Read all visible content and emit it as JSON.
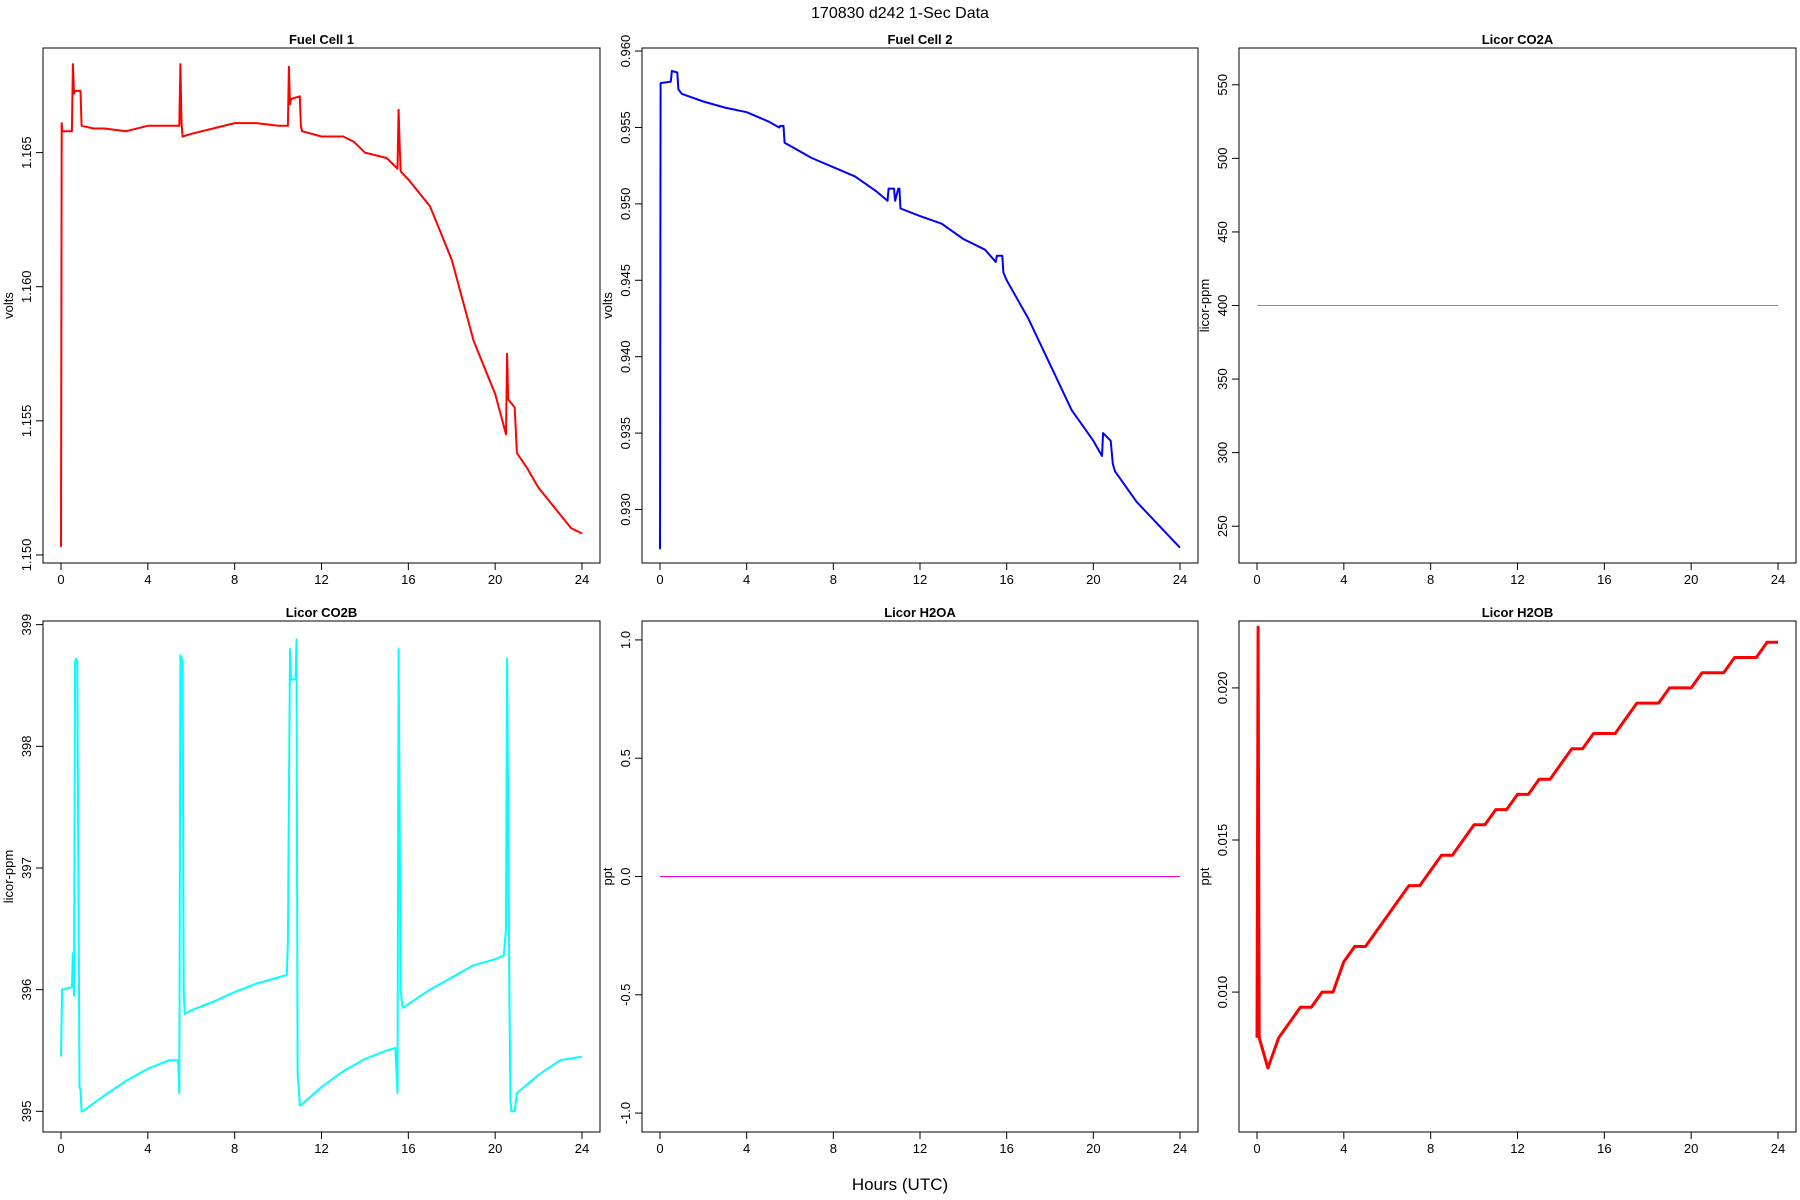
{
  "figure": {
    "title": "170830   d242   1-Sec Data",
    "xlabel": "Hours (UTC)"
  },
  "chart_data": [
    {
      "type": "line",
      "title": "Fuel Cell 1",
      "ylabel": "volts",
      "color": "#ff0000",
      "xlim": [
        0,
        24
      ],
      "ylim": [
        1.1497,
        1.1689
      ],
      "xticks": [
        0,
        4,
        8,
        12,
        16,
        20,
        24
      ],
      "xtick_labels": [
        "0",
        "4",
        "8",
        "12",
        "16",
        "20",
        "24"
      ],
      "yticks": [
        1.15,
        1.155,
        1.16,
        1.165
      ],
      "ytick_labels": [
        "1.150",
        "1.155",
        "1.160",
        "1.165"
      ],
      "series": [
        {
          "x": [
            0,
            0.03,
            0.06,
            0.5,
            0.55,
            0.6,
            0.65,
            0.9,
            0.95,
            1.5,
            2,
            3,
            4,
            5,
            5.45,
            5.5,
            5.55,
            5.6,
            6,
            7,
            8,
            9,
            10,
            10.45,
            10.5,
            10.55,
            10.6,
            11,
            11.05,
            11.1,
            12,
            13,
            13.5,
            14,
            15,
            15.5,
            15.55,
            15.6,
            15.65,
            16,
            17,
            18,
            19,
            19.5,
            20,
            20.5,
            20.55,
            20.6,
            20.7,
            20.9,
            21,
            21.5,
            22,
            23,
            23.5,
            24
          ],
          "y": [
            1.1503,
            1.1661,
            1.1658,
            1.1658,
            1.1683,
            1.1672,
            1.1673,
            1.1673,
            1.166,
            1.1659,
            1.1659,
            1.1658,
            1.166,
            1.166,
            1.166,
            1.1683,
            1.1661,
            1.1656,
            1.1657,
            1.1659,
            1.1661,
            1.1661,
            1.166,
            1.166,
            1.1682,
            1.1668,
            1.167,
            1.1671,
            1.166,
            1.1658,
            1.1656,
            1.1656,
            1.1654,
            1.165,
            1.1648,
            1.1644,
            1.1666,
            1.1652,
            1.1643,
            1.164,
            1.163,
            1.161,
            1.158,
            1.157,
            1.156,
            1.1545,
            1.1575,
            1.1558,
            1.1557,
            1.1555,
            1.1538,
            1.1532,
            1.1525,
            1.1515,
            1.151,
            1.1508
          ]
        }
      ]
    },
    {
      "type": "line",
      "title": "Fuel Cell 2",
      "ylabel": "volts",
      "color": "#0000ff",
      "xlim": [
        0,
        24
      ],
      "ylim": [
        0.9265,
        0.9602
      ],
      "xticks": [
        0,
        4,
        8,
        12,
        16,
        20,
        24
      ],
      "xtick_labels": [
        "0",
        "4",
        "8",
        "12",
        "16",
        "20",
        "24"
      ],
      "yticks": [
        0.93,
        0.935,
        0.94,
        0.945,
        0.95,
        0.955,
        0.96
      ],
      "ytick_labels": [
        "0.930",
        "0.935",
        "0.940",
        "0.945",
        "0.950",
        "0.955",
        "0.960"
      ],
      "series": [
        {
          "x": [
            0,
            0.03,
            0.5,
            0.55,
            0.8,
            0.85,
            1,
            2,
            3,
            4,
            5,
            5.5,
            5.55,
            5.7,
            5.75,
            6,
            7,
            8,
            9,
            10,
            10.5,
            10.55,
            10.8,
            10.85,
            11,
            11.05,
            11.1,
            12,
            13,
            14,
            15,
            15.5,
            15.55,
            15.8,
            15.85,
            16,
            17,
            18,
            19,
            20,
            20.4,
            20.45,
            20.8,
            20.9,
            21,
            22,
            23,
            24
          ],
          "y": [
            0.9274,
            0.9579,
            0.958,
            0.9587,
            0.9586,
            0.9575,
            0.9572,
            0.9567,
            0.9563,
            0.956,
            0.9554,
            0.955,
            0.9551,
            0.9551,
            0.954,
            0.9538,
            0.953,
            0.9524,
            0.9518,
            0.9508,
            0.9502,
            0.951,
            0.951,
            0.9502,
            0.951,
            0.951,
            0.9497,
            0.9492,
            0.9487,
            0.9477,
            0.947,
            0.9462,
            0.9466,
            0.9466,
            0.9455,
            0.945,
            0.9425,
            0.9395,
            0.9365,
            0.9345,
            0.9335,
            0.935,
            0.9345,
            0.933,
            0.9325,
            0.9305,
            0.929,
            0.9275
          ]
        }
      ]
    },
    {
      "type": "line",
      "title": "Licor CO2A",
      "ylabel": "licor-ppm",
      "color": "#00ee00",
      "xlim": [
        0,
        24
      ],
      "ylim": [
        225,
        575
      ],
      "xticks": [
        0,
        4,
        8,
        12,
        16,
        20,
        24
      ],
      "xtick_labels": [
        "0",
        "4",
        "8",
        "12",
        "16",
        "20",
        "24"
      ],
      "yticks": [
        250,
        300,
        350,
        400,
        450,
        500,
        550
      ],
      "ytick_labels": [
        "250",
        "300",
        "350",
        "400",
        "450",
        "500",
        "550"
      ],
      "series": [
        {
          "x": [
            0,
            24
          ],
          "y": [
            400,
            400
          ]
        }
      ]
    },
    {
      "type": "line",
      "title": "Licor CO2B",
      "ylabel": "licor-ppm",
      "color": "#00ffff",
      "xlim": [
        0,
        24
      ],
      "ylim": [
        394.83,
        399.03
      ],
      "xticks": [
        0,
        4,
        8,
        12,
        16,
        20,
        24
      ],
      "xtick_labels": [
        "0",
        "4",
        "8",
        "12",
        "16",
        "20",
        "24"
      ],
      "yticks": [
        395,
        396,
        397,
        398,
        399
      ],
      "ytick_labels": [
        "395",
        "396",
        "397",
        "398",
        "399"
      ],
      "series": [
        {
          "x": [
            0,
            0.05,
            0.5,
            0.55,
            0.6,
            0.65,
            0.7,
            0.75,
            0.85,
            0.9,
            0.95,
            1.0,
            2,
            3,
            4,
            5,
            5.4,
            5.45,
            5.5,
            5.6,
            5.65,
            5.7,
            6,
            7,
            8,
            9,
            10,
            10.4,
            10.45,
            10.55,
            10.6,
            10.8,
            10.85,
            10.9,
            10.95,
            11.0,
            11.05,
            12,
            13,
            14,
            15,
            15.4,
            15.5,
            15.55,
            15.65,
            15.7,
            15.75,
            16,
            17,
            18,
            19,
            20,
            20.4,
            20.5,
            20.55,
            20.65,
            20.7,
            20.75,
            20.9,
            21,
            22,
            23,
            24
          ],
          "y": [
            395.45,
            396.0,
            396.02,
            396.3,
            395.95,
            398.7,
            398.72,
            398.7,
            395.2,
            395.18,
            395.0,
            395.0,
            395.13,
            395.25,
            395.35,
            395.42,
            395.42,
            395.15,
            398.75,
            398.7,
            396.0,
            395.8,
            395.83,
            395.9,
            395.98,
            396.05,
            396.1,
            396.12,
            396.4,
            398.8,
            398.55,
            398.55,
            398.88,
            395.3,
            395.2,
            395.05,
            395.05,
            395.2,
            395.33,
            395.43,
            395.5,
            395.52,
            395.15,
            398.8,
            396.0,
            395.9,
            395.85,
            395.88,
            396.0,
            396.1,
            396.2,
            396.25,
            396.28,
            396.5,
            398.72,
            396.05,
            395.1,
            395.0,
            395.0,
            395.15,
            395.3,
            395.42,
            395.45
          ]
        }
      ]
    },
    {
      "type": "line",
      "title": "Licor H2OA",
      "ylabel": "ppt",
      "color": "#ee00ee",
      "xlim": [
        0,
        24
      ],
      "ylim": [
        -1.08,
        1.08
      ],
      "xticks": [
        0,
        4,
        8,
        12,
        16,
        20,
        24
      ],
      "xtick_labels": [
        "0",
        "4",
        "8",
        "12",
        "16",
        "20",
        "24"
      ],
      "yticks": [
        -1.0,
        -0.5,
        0.0,
        0.5,
        1.0
      ],
      "ytick_labels": [
        "-1.0",
        "-0.5",
        "0.0",
        "0.5",
        "1.0"
      ],
      "series": [
        {
          "x": [
            0,
            24
          ],
          "y": [
            0,
            0
          ]
        }
      ]
    },
    {
      "type": "line",
      "title": "Licor H2OB",
      "ylabel": "ppt",
      "color": "#ff0000",
      "xlim": [
        0,
        24
      ],
      "ylim": [
        0.0054,
        0.0222
      ],
      "xticks": [
        0,
        4,
        8,
        12,
        16,
        20,
        24
      ],
      "xtick_labels": [
        "0",
        "4",
        "8",
        "12",
        "16",
        "20",
        "24"
      ],
      "yticks": [
        0.01,
        0.015,
        0.02
      ],
      "ytick_labels": [
        "0.010",
        "0.015",
        "0.020"
      ],
      "series": [
        {
          "x": [
            0,
            0.05,
            0.1,
            0.5,
            1,
            1.5,
            2,
            2.5,
            3,
            3.5,
            4,
            4.5,
            5,
            5.5,
            6,
            6.5,
            7,
            7.5,
            8,
            8.5,
            9,
            9.5,
            10,
            10.5,
            11,
            11.5,
            12,
            12.5,
            13,
            13.5,
            14,
            14.5,
            15,
            15.5,
            16,
            16.5,
            17,
            17.5,
            18,
            18.5,
            19,
            19.5,
            20,
            20.5,
            21,
            21.5,
            22,
            22.5,
            23,
            23.5,
            24
          ],
          "y": [
            0.0085,
            0.022,
            0.0085,
            0.0075,
            0.0085,
            0.009,
            0.0095,
            0.0095,
            0.01,
            0.01,
            0.011,
            0.0115,
            0.0115,
            0.012,
            0.0125,
            0.013,
            0.0135,
            0.0135,
            0.014,
            0.0145,
            0.0145,
            0.015,
            0.0155,
            0.0155,
            0.016,
            0.016,
            0.0165,
            0.0165,
            0.017,
            0.017,
            0.0175,
            0.018,
            0.018,
            0.0185,
            0.0185,
            0.0185,
            0.019,
            0.0195,
            0.0195,
            0.0195,
            0.02,
            0.02,
            0.02,
            0.0205,
            0.0205,
            0.0205,
            0.021,
            0.021,
            0.021,
            0.0215,
            0.0215
          ]
        }
      ]
    }
  ]
}
